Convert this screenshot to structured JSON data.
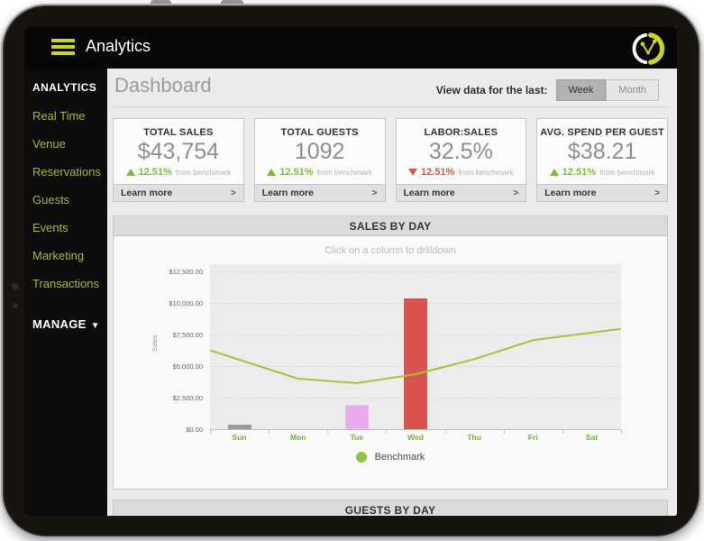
{
  "app": {
    "title": "Analytics"
  },
  "sidebar": {
    "section": "ANALYTICS",
    "items": [
      "Real Time",
      "Venue",
      "Reservations",
      "Guests",
      "Events",
      "Marketing",
      "Transactions"
    ],
    "manage": "MANAGE"
  },
  "header": {
    "title": "Dashboard",
    "view_label": "View data for the last:",
    "toggle": [
      {
        "label": "Week",
        "selected": true
      },
      {
        "label": "Month",
        "selected": false
      }
    ]
  },
  "cards": [
    {
      "title": "TOTAL SALES",
      "value": "$43,754",
      "direction": "up",
      "delta": "12.51%",
      "delta_note": "from benchmark",
      "footer": "Learn more"
    },
    {
      "title": "TOTAL GUESTS",
      "value": "1092",
      "direction": "up",
      "delta": "12.51%",
      "delta_note": "from benchmark",
      "footer": "Learn more"
    },
    {
      "title": "LABOR:SALES",
      "value": "32.5%",
      "direction": "down",
      "delta": "12.51%",
      "delta_note": "from benchmark",
      "footer": "Learn more"
    },
    {
      "title": "AVG. SPEND PER GUEST",
      "value": "$38.21",
      "direction": "up",
      "delta": "12.51%",
      "delta_note": "from benchmark",
      "footer": "Learn more"
    }
  ],
  "icons": {
    "learn_more_arrow": ">",
    "manage_chevron": "▼"
  },
  "chart_data": {
    "type": "bar",
    "title": "SALES BY DAY",
    "subtitle": "Click on a column to drilldown",
    "categories": [
      "Sun",
      "Mon",
      "Tue",
      "Wed",
      "Thu",
      "Fri",
      "Sat"
    ],
    "series": [
      {
        "name": "Sales",
        "type": "bar",
        "values": [
          350,
          0,
          1900,
          10350,
          0,
          0,
          0
        ],
        "colors": [
          "#9b9b9b",
          "",
          "#eaa9ee",
          "#d9534f",
          "",
          "",
          ""
        ],
        "border_dashed": [
          false,
          false,
          true,
          false,
          false,
          false,
          false
        ]
      },
      {
        "name": "Benchmark",
        "type": "line",
        "color": "#a2c43c",
        "values": [
          5500,
          4000,
          3650,
          4350,
          5550,
          7050,
          7650
        ]
      }
    ],
    "xlabel": "",
    "ylabel": "Sales",
    "ylim": [
      0,
      13000
    ],
    "yticks": [
      {
        "value": 0,
        "label": "$0.00"
      },
      {
        "value": 2500,
        "label": "$2,500.00"
      },
      {
        "value": 5000,
        "label": "$5,000.00"
      },
      {
        "value": 7500,
        "label": "$7,500.00"
      },
      {
        "value": 10000,
        "label": "$10,000.00"
      },
      {
        "value": 12500,
        "label": "$12,500.00"
      }
    ],
    "grid": "horizontal-dashed",
    "legend": {
      "position": "bottom",
      "entries": [
        {
          "label": "Benchmark",
          "color": "#8dc63f"
        }
      ]
    }
  },
  "guests_panel": {
    "title": "GUESTS BY DAY"
  },
  "colors": {
    "accent_yellow_green": "#c9d323",
    "sidebar_link": "#9ebe3b",
    "delta_up": "#85bb3a",
    "delta_down": "#d9534f",
    "day_label": "#72b23a"
  }
}
